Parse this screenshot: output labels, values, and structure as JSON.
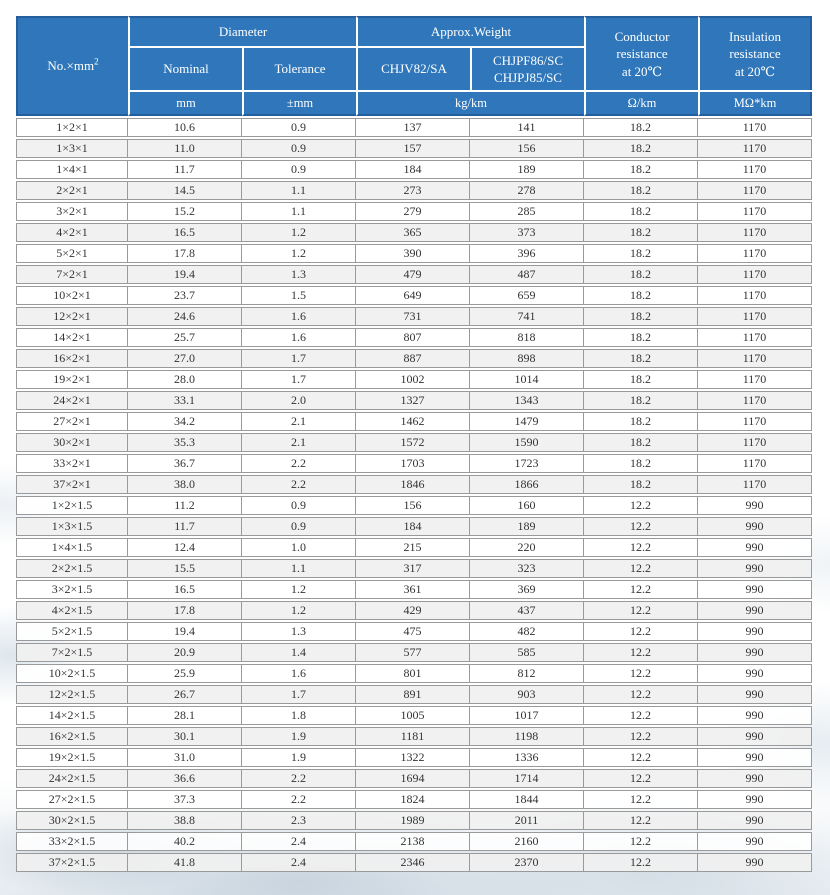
{
  "colors": {
    "header_bg": "#2f77ba",
    "header_border": "#255e9c",
    "grid_line": "#9a9a9a",
    "row_alt_bg": "#f1f1f1",
    "text": "#333333",
    "header_text": "#ffffff"
  },
  "table": {
    "header": {
      "no_label": "No.×mm",
      "no_sup": "2",
      "diameter": "Diameter",
      "approx_weight": "Approx.Weight",
      "nominal": "Nominal",
      "tolerance": "Tolerance",
      "weight_col1": "CHJV82/SA",
      "weight_col2": "CHJPF86/SC\nCHJPJ85/SC",
      "conductor": "Conductor\nresistance\nat 20℃",
      "insulation": "Insulation\nresistance\nat 20℃"
    },
    "units": {
      "diameter_nominal": "mm",
      "diameter_tolerance": "±mm",
      "weight": "kg/km",
      "conductor": "Ω/km",
      "insulation": "MΩ*km"
    },
    "rows": [
      [
        "1×2×1",
        "10.6",
        "0.9",
        "137",
        "141",
        "18.2",
        "1170"
      ],
      [
        "1×3×1",
        "11.0",
        "0.9",
        "157",
        "156",
        "18.2",
        "1170"
      ],
      [
        "1×4×1",
        "11.7",
        "0.9",
        "184",
        "189",
        "18.2",
        "1170"
      ],
      [
        "2×2×1",
        "14.5",
        "1.1",
        "273",
        "278",
        "18.2",
        "1170"
      ],
      [
        "3×2×1",
        "15.2",
        "1.1",
        "279",
        "285",
        "18.2",
        "1170"
      ],
      [
        "4×2×1",
        "16.5",
        "1.2",
        "365",
        "373",
        "18.2",
        "1170"
      ],
      [
        "5×2×1",
        "17.8",
        "1.2",
        "390",
        "396",
        "18.2",
        "1170"
      ],
      [
        "7×2×1",
        "19.4",
        "1.3",
        "479",
        "487",
        "18.2",
        "1170"
      ],
      [
        "10×2×1",
        "23.7",
        "1.5",
        "649",
        "659",
        "18.2",
        "1170"
      ],
      [
        "12×2×1",
        "24.6",
        "1.6",
        "731",
        "741",
        "18.2",
        "1170"
      ],
      [
        "14×2×1",
        "25.7",
        "1.6",
        "807",
        "818",
        "18.2",
        "1170"
      ],
      [
        "16×2×1",
        "27.0",
        "1.7",
        "887",
        "898",
        "18.2",
        "1170"
      ],
      [
        "19×2×1",
        "28.0",
        "1.7",
        "1002",
        "1014",
        "18.2",
        "1170"
      ],
      [
        "24×2×1",
        "33.1",
        "2.0",
        "1327",
        "1343",
        "18.2",
        "1170"
      ],
      [
        "27×2×1",
        "34.2",
        "2.1",
        "1462",
        "1479",
        "18.2",
        "1170"
      ],
      [
        "30×2×1",
        "35.3",
        "2.1",
        "1572",
        "1590",
        "18.2",
        "1170"
      ],
      [
        "33×2×1",
        "36.7",
        "2.2",
        "1703",
        "1723",
        "18.2",
        "1170"
      ],
      [
        "37×2×1",
        "38.0",
        "2.2",
        "1846",
        "1866",
        "18.2",
        "1170"
      ],
      [
        "1×2×1.5",
        "11.2",
        "0.9",
        "156",
        "160",
        "12.2",
        "990"
      ],
      [
        "1×3×1.5",
        "11.7",
        "0.9",
        "184",
        "189",
        "12.2",
        "990"
      ],
      [
        "1×4×1.5",
        "12.4",
        "1.0",
        "215",
        "220",
        "12.2",
        "990"
      ],
      [
        "2×2×1.5",
        "15.5",
        "1.1",
        "317",
        "323",
        "12.2",
        "990"
      ],
      [
        "3×2×1.5",
        "16.5",
        "1.2",
        "361",
        "369",
        "12.2",
        "990"
      ],
      [
        "4×2×1.5",
        "17.8",
        "1.2",
        "429",
        "437",
        "12.2",
        "990"
      ],
      [
        "5×2×1.5",
        "19.4",
        "1.3",
        "475",
        "482",
        "12.2",
        "990"
      ],
      [
        "7×2×1.5",
        "20.9",
        "1.4",
        "577",
        "585",
        "12.2",
        "990"
      ],
      [
        "10×2×1.5",
        "25.9",
        "1.6",
        "801",
        "812",
        "12.2",
        "990"
      ],
      [
        "12×2×1.5",
        "26.7",
        "1.7",
        "891",
        "903",
        "12.2",
        "990"
      ],
      [
        "14×2×1.5",
        "28.1",
        "1.8",
        "1005",
        "1017",
        "12.2",
        "990"
      ],
      [
        "16×2×1.5",
        "30.1",
        "1.9",
        "1181",
        "1198",
        "12.2",
        "990"
      ],
      [
        "19×2×1.5",
        "31.0",
        "1.9",
        "1322",
        "1336",
        "12.2",
        "990"
      ],
      [
        "24×2×1.5",
        "36.6",
        "2.2",
        "1694",
        "1714",
        "12.2",
        "990"
      ],
      [
        "27×2×1.5",
        "37.3",
        "2.2",
        "1824",
        "1844",
        "12.2",
        "990"
      ],
      [
        "30×2×1.5",
        "38.8",
        "2.3",
        "1989",
        "2011",
        "12.2",
        "990"
      ],
      [
        "33×2×1.5",
        "40.2",
        "2.4",
        "2138",
        "2160",
        "12.2",
        "990"
      ],
      [
        "37×2×1.5",
        "41.8",
        "2.4",
        "2346",
        "2370",
        "12.2",
        "990"
      ]
    ]
  }
}
